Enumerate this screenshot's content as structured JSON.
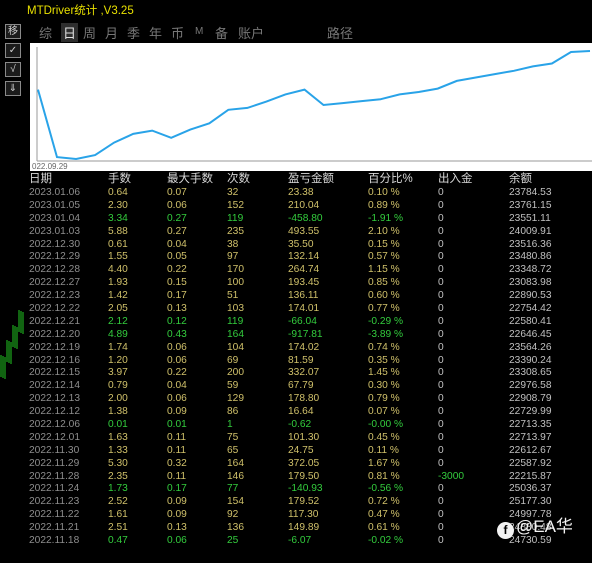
{
  "window": {
    "title": "MTDriver统计 ,V3.25"
  },
  "side_buttons": [
    "移",
    "✓",
    "√",
    "⇓"
  ],
  "tabs": [
    {
      "label": "综",
      "active": false
    },
    {
      "label": "日",
      "active": true
    },
    {
      "label": "周",
      "active": false
    },
    {
      "label": "月",
      "active": false
    },
    {
      "label": "季",
      "active": false
    },
    {
      "label": "年",
      "active": false
    },
    {
      "label": "币",
      "active": false
    },
    {
      "label": "M",
      "active": false
    },
    {
      "label": "备",
      "active": false
    },
    {
      "label": "账户",
      "active": false
    },
    {
      "label": "路径",
      "active": false
    }
  ],
  "chart_data": {
    "type": "line",
    "x_start_label": "022.09.29",
    "line_color": "#29a3e8",
    "values": [
      23000,
      21600,
      21560,
      21640,
      21900,
      22080,
      22150,
      22000,
      22170,
      22300,
      22580,
      22620,
      22750,
      22900,
      23000,
      22680,
      22720,
      22760,
      22800,
      22900,
      22950,
      23020,
      23180,
      23250,
      23320,
      23390,
      23480,
      23540,
      23780,
      23800
    ]
  },
  "table": {
    "headers": [
      "日期",
      "手数",
      "最大手数",
      "次数",
      "盈亏金额",
      "百分比%",
      "出入金",
      "余额"
    ],
    "rows": [
      [
        "2023.01.06",
        "0.64",
        "0.07",
        "32",
        "23.38",
        "0.10 %",
        "0",
        "23784.53"
      ],
      [
        "2023.01.05",
        "2.30",
        "0.06",
        "152",
        "210.04",
        "0.89 %",
        "0",
        "23761.15"
      ],
      [
        "2023.01.04",
        "3.34",
        "0.27",
        "119",
        "-458.80",
        "-1.91 %",
        "0",
        "23551.11"
      ],
      [
        "2023.01.03",
        "5.88",
        "0.27",
        "235",
        "493.55",
        "2.10 %",
        "0",
        "24009.91"
      ],
      [
        "2022.12.30",
        "0.61",
        "0.04",
        "38",
        "35.50",
        "0.15 %",
        "0",
        "23516.36"
      ],
      [
        "2022.12.29",
        "1.55",
        "0.05",
        "97",
        "132.14",
        "0.57 %",
        "0",
        "23480.86"
      ],
      [
        "2022.12.28",
        "4.40",
        "0.22",
        "170",
        "264.74",
        "1.15 %",
        "0",
        "23348.72"
      ],
      [
        "2022.12.27",
        "1.93",
        "0.15",
        "100",
        "193.45",
        "0.85 %",
        "0",
        "23083.98"
      ],
      [
        "2022.12.23",
        "1.42",
        "0.17",
        "51",
        "136.11",
        "0.60 %",
        "0",
        "22890.53"
      ],
      [
        "2022.12.22",
        "2.05",
        "0.13",
        "103",
        "174.01",
        "0.77 %",
        "0",
        "22754.42"
      ],
      [
        "2022.12.21",
        "2.12",
        "0.12",
        "119",
        "-66.04",
        "-0.29 %",
        "0",
        "22580.41"
      ],
      [
        "2022.12.20",
        "4.89",
        "0.43",
        "164",
        "-917.81",
        "-3.89 %",
        "0",
        "22646.45"
      ],
      [
        "2022.12.19",
        "1.74",
        "0.06",
        "104",
        "174.02",
        "0.74 %",
        "0",
        "23564.26"
      ],
      [
        "2022.12.16",
        "1.20",
        "0.06",
        "69",
        "81.59",
        "0.35 %",
        "0",
        "23390.24"
      ],
      [
        "2022.12.15",
        "3.97",
        "0.22",
        "200",
        "332.07",
        "1.45 %",
        "0",
        "23308.65"
      ],
      [
        "2022.12.14",
        "0.79",
        "0.04",
        "59",
        "67.79",
        "0.30 %",
        "0",
        "22976.58"
      ],
      [
        "2022.12.13",
        "2.00",
        "0.06",
        "129",
        "178.80",
        "0.79 %",
        "0",
        "22908.79"
      ],
      [
        "2022.12.12",
        "1.38",
        "0.09",
        "86",
        "16.64",
        "0.07 %",
        "0",
        "22729.99"
      ],
      [
        "2022.12.06",
        "0.01",
        "0.01",
        "1",
        "-0.62",
        "-0.00 %",
        "0",
        "22713.35"
      ],
      [
        "2022.12.01",
        "1.63",
        "0.11",
        "75",
        "101.30",
        "0.45 %",
        "0",
        "22713.97"
      ],
      [
        "2022.11.30",
        "1.33",
        "0.11",
        "65",
        "24.75",
        "0.11 %",
        "0",
        "22612.67"
      ],
      [
        "2022.11.29",
        "5.30",
        "0.32",
        "164",
        "372.05",
        "1.67 %",
        "0",
        "22587.92"
      ],
      [
        "2022.11.28",
        "2.35",
        "0.11",
        "146",
        "179.50",
        "0.81 %",
        "-3000",
        "22215.87"
      ],
      [
        "2022.11.24",
        "1.73",
        "0.17",
        "77",
        "-140.93",
        "-0.56 %",
        "0",
        "25036.37"
      ],
      [
        "2022.11.23",
        "2.52",
        "0.09",
        "154",
        "179.52",
        "0.72 %",
        "0",
        "25177.30"
      ],
      [
        "2022.11.22",
        "1.61",
        "0.09",
        "92",
        "117.30",
        "0.47 %",
        "0",
        "24997.78"
      ],
      [
        "2022.11.21",
        "2.51",
        "0.13",
        "136",
        "149.89",
        "0.61 %",
        "0",
        "24880.48"
      ],
      [
        "2022.11.18",
        "0.47",
        "0.06",
        "25",
        "-6.07",
        "-0.02 %",
        "0",
        "24730.59"
      ]
    ]
  },
  "watermark": {
    "logo": "f",
    "text": "@EA华"
  }
}
